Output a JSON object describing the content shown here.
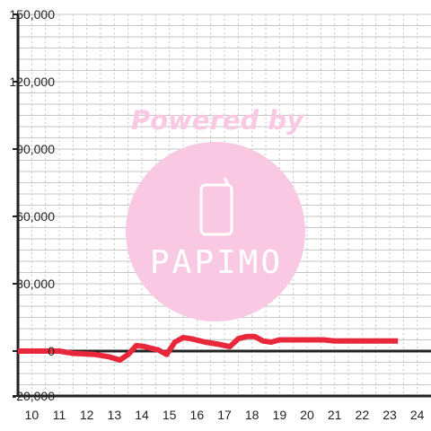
{
  "watermark": {
    "powered_text": "Powered by",
    "logo_text": "PAPIMO",
    "color": "#ffffff",
    "fill_color": "#f9c9e3"
  },
  "colors": {
    "line": "#e8273a",
    "axis": "#222222",
    "grid": "#c6c6c6",
    "background": "#ffffff"
  },
  "chart_data": {
    "type": "line",
    "title": "",
    "xlabel": "",
    "ylabel": "",
    "xlim": [
      9.5,
      24.5
    ],
    "ylim": [
      -20000,
      150000
    ],
    "grid": true,
    "x_ticks": [
      10,
      11,
      12,
      13,
      14,
      15,
      16,
      17,
      18,
      19,
      20,
      21,
      22,
      23,
      24
    ],
    "y_ticks": [
      -20000,
      0,
      30000,
      60000,
      90000,
      120000,
      150000
    ],
    "y_tick_labels": [
      "-20,000",
      "0",
      "30,000",
      "60,000",
      "90,000",
      "120,000",
      "150,000"
    ],
    "series": [
      {
        "name": "",
        "x": [
          9.5,
          11.0,
          11.5,
          12.3,
          12.8,
          13.2,
          13.5,
          13.8,
          14.1,
          14.6,
          14.9,
          15.2,
          15.5,
          15.8,
          16.3,
          16.8,
          17.2,
          17.5,
          17.8,
          18.1,
          18.4,
          18.7,
          19.0,
          19.5,
          20.0,
          20.6,
          21.0,
          21.6,
          22.2,
          22.8,
          23.3
        ],
        "y": [
          0,
          0,
          -1000,
          -1500,
          -2500,
          -4000,
          -1500,
          2500,
          2000,
          500,
          -1500,
          4000,
          6000,
          5500,
          4000,
          3000,
          2000,
          5500,
          6500,
          6500,
          4500,
          4000,
          5000,
          5000,
          5000,
          5000,
          4500,
          4500,
          4500,
          4500,
          4500
        ]
      }
    ]
  }
}
